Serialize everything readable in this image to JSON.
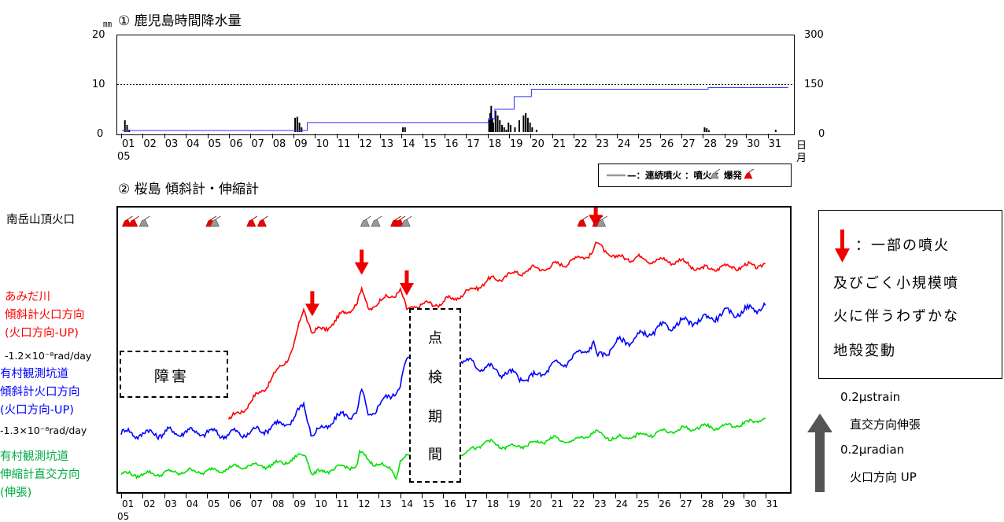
{
  "panel1": {
    "unit": "㎜",
    "title": "① 鹿児島時間降水量",
    "left_ticks": [
      "20",
      "10",
      "0"
    ],
    "right_ticks": [
      "300",
      "150",
      "0"
    ],
    "day_labels": [
      "01",
      "02",
      "03",
      "04",
      "05",
      "06",
      "07",
      "08",
      "09",
      "10",
      "11",
      "12",
      "13",
      "14",
      "15",
      "16",
      "17",
      "18",
      "19",
      "20",
      "21",
      "22",
      "23",
      "24",
      "25",
      "26",
      "27",
      "28",
      "29",
      "30",
      "31"
    ],
    "month_label": "05",
    "axis_unit_day": "日",
    "axis_unit_month": "月"
  },
  "panel2": {
    "title": "② 桜島 傾斜計・伸縮計",
    "legend": "—：連続噴火 ：噴火 ：爆発",
    "crater_label": "南岳山頂火口",
    "labels": {
      "amida_line1": "あみだ川",
      "amida_line2": "傾斜計火口方向",
      "amida_line3": "(火口方向-UP)",
      "amida_trend": "-1.2×10⁻⁸rad/day",
      "arimura_tilt_line1": "有村観測坑道",
      "arimura_tilt_line2": "傾斜計火口方向",
      "arimura_tilt_line3": "(火口方向-UP)",
      "arimura_trend": "-1.3×10⁻⁸rad/day",
      "arimura_ext_line1": "有村観測坑道",
      "arimura_ext_line2": "伸縮計直交方向",
      "arimura_ext_line3": "(伸張)"
    },
    "fault_box": "障害",
    "inspection_box": [
      "点",
      "検",
      "期",
      "間"
    ],
    "day_labels": [
      "01",
      "02",
      "03",
      "04",
      "05",
      "06",
      "07",
      "08",
      "09",
      "10",
      "11",
      "12",
      "13",
      "14",
      "15",
      "16",
      "17",
      "18",
      "19",
      "20",
      "21",
      "22",
      "23",
      "24",
      "25",
      "26",
      "27",
      "28",
      "29",
      "30",
      "31"
    ],
    "month_label": "05"
  },
  "note": {
    "line1": "：一部の噴火",
    "line2": "及びごく小規模噴",
    "line3": "火に伴うわずかな",
    "line4": "地殻変動"
  },
  "scale": {
    "line1": "0.2μstrain",
    "line2": "直交方向伸張",
    "line3": "0.2μradian",
    "line4": "火口方向 UP"
  },
  "colors": {
    "amida": "#ff0000",
    "arimura_tilt": "#0000ff",
    "arimura_ext": "#00e000",
    "cumulative": "#3333ff",
    "arrow": "#ee0000"
  },
  "chart_data": [
    {
      "type": "bar",
      "title": "① 鹿児島時間降水量",
      "xlabel": "日 月",
      "ylabel": "㎜",
      "ylim": [
        0,
        20
      ],
      "y2lim": [
        0,
        300
      ],
      "grid": "dotted line at 10",
      "series": [
        {
          "name": "",
          "kind": "hourly_bars",
          "x": [
            1.1,
            1.2,
            1.3,
            9.0,
            9.1,
            9.2,
            9.3,
            14.0,
            14.1,
            18.0,
            18.05,
            18.1,
            18.15,
            18.2,
            18.3,
            18.4,
            18.5,
            18.6,
            18.7,
            18.8,
            18.9,
            19.0,
            19.2,
            19.4,
            19.6,
            19.7,
            19.8,
            19.9,
            20.0,
            20.2,
            28.0,
            28.1,
            28.2,
            31.3
          ],
          "values": [
            2.5,
            1.5,
            0.5,
            3.0,
            3.2,
            2.0,
            1.0,
            1.0,
            1.0,
            2.5,
            4.0,
            5.5,
            3.0,
            2.0,
            4.5,
            3.5,
            2.5,
            1.5,
            1.0,
            0.5,
            2.0,
            1.5,
            1.0,
            2.5,
            3.5,
            4.0,
            3.0,
            2.0,
            1.0,
            0.5,
            1.0,
            0.8,
            0.4,
            0.5
          ]
        },
        {
          "name": "",
          "kind": "cumulative_line",
          "axis": "right",
          "x": [
            1,
            9,
            9.6,
            14,
            18.0,
            18.3,
            19.2,
            20.0,
            27.9,
            28.2,
            31.9
          ],
          "values": [
            5,
            5,
            30,
            30,
            42,
            72,
            112,
            135,
            135,
            140,
            142
          ]
        }
      ]
    },
    {
      "type": "line",
      "title": "② 桜島 傾斜計・伸縮計",
      "xlabel": "",
      "ylabel": "",
      "series": [
        {
          "name": "あみだ川 傾斜計火口方向 (火口方向-UP)",
          "x": [
            6,
            7,
            8,
            9,
            9.5,
            9.9,
            10.5,
            11,
            11.5,
            12,
            12.2,
            12.5,
            13,
            13.5,
            14,
            14.3,
            14.6,
            15,
            16,
            17,
            18,
            19,
            20,
            21,
            22,
            23,
            23.1,
            24,
            25,
            26,
            27,
            28,
            29,
            30,
            31
          ],
          "values": [
            -2.4,
            -2.1,
            -1.7,
            -1.2,
            -0.5,
            -0.9,
            -0.85,
            -0.7,
            -0.55,
            -0.4,
            -0.2,
            -0.5,
            -0.4,
            -0.3,
            -0.2,
            -0.55,
            -0.45,
            -0.45,
            -0.4,
            -0.25,
            -0.05,
            0.05,
            0.15,
            0.2,
            0.3,
            0.45,
            0.6,
            0.35,
            0.35,
            0.3,
            0.3,
            0.15,
            0.2,
            0.2,
            0.25
          ]
        },
        {
          "name": "有村観測坑道 傾斜計火口方向 (火口方向-UP)",
          "x": [
            1,
            2,
            3,
            4,
            5,
            6,
            7,
            8,
            9,
            9.5,
            9.9,
            10.5,
            11,
            12,
            12.2,
            12.5,
            13,
            14,
            14.3,
            14.6,
            15,
            16,
            17,
            18,
            19,
            20,
            21,
            22,
            23,
            23.2,
            24,
            25,
            26,
            27,
            28,
            29,
            30,
            31
          ],
          "values": [
            -2.6,
            -2.62,
            -2.6,
            -2.58,
            -2.6,
            -2.62,
            -2.6,
            -2.5,
            -2.4,
            -2.1,
            -2.65,
            -2.5,
            -2.35,
            -2.25,
            -1.9,
            -2.3,
            -2.15,
            -1.8,
            -1.4,
            -1.3,
            -1.3,
            -1.25,
            -1.4,
            -1.5,
            -1.6,
            -1.7,
            -1.5,
            -1.35,
            -1.1,
            -1.35,
            -1.1,
            -1.0,
            -0.85,
            -0.75,
            -0.7,
            -0.6,
            -0.55,
            -0.45
          ]
        },
        {
          "name": "有村観測坑道 伸縮計直交方向 (伸張)",
          "x": [
            1,
            2,
            3,
            4,
            5,
            6,
            7,
            8,
            9,
            9.6,
            9.9,
            11,
            12,
            12.1,
            13,
            13.6,
            13.8,
            14,
            14.5,
            15,
            16,
            17,
            18,
            19,
            20,
            21,
            22,
            23,
            24,
            25,
            26,
            27,
            28,
            29,
            30,
            31
          ],
          "values": [
            -3.3,
            -3.3,
            -3.28,
            -3.25,
            -3.25,
            -3.2,
            -3.15,
            -3.15,
            -3.05,
            -2.95,
            -3.3,
            -3.2,
            -3.15,
            -2.95,
            -3.15,
            -3.2,
            -3.35,
            -3.1,
            -2.95,
            -3.0,
            -2.95,
            -2.95,
            -2.75,
            -2.85,
            -2.8,
            -2.7,
            -2.75,
            -2.6,
            -2.7,
            -2.65,
            -2.6,
            -2.55,
            -2.5,
            -2.5,
            -2.45,
            -2.35
          ]
        }
      ],
      "events": {
        "explosion_days": [
          1.2,
          1.5,
          5.1,
          7.0,
          7.5,
          13.7,
          13.9,
          22.4,
          23.1
        ],
        "eruption_days": [
          2.0,
          5.3,
          12.3,
          12.8,
          14.2,
          23.3
        ],
        "arrow_days": [
          9.9,
          12.2,
          14.3,
          23.1
        ]
      }
    }
  ]
}
